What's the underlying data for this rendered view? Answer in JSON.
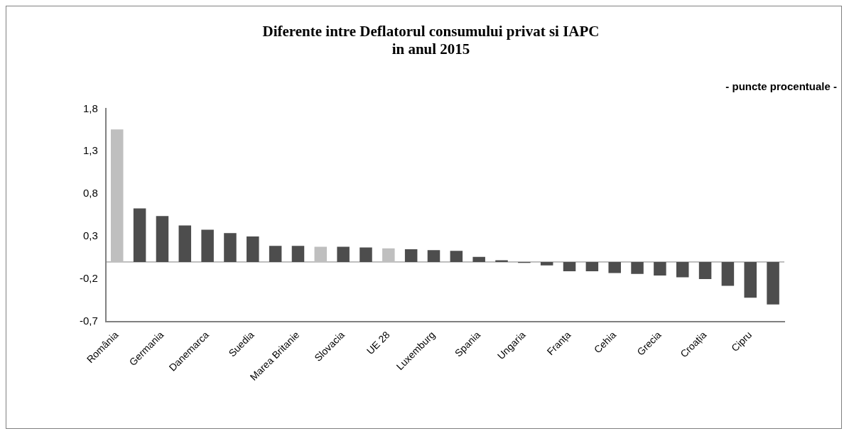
{
  "chart_data": {
    "type": "bar",
    "title": "Diferente intre Deflatorul consumului privat si IAPC\nin anul 2015",
    "annotations": [
      "- puncte procentuale -"
    ],
    "categories": [
      "România",
      null,
      "Germania",
      null,
      "Danemarca",
      null,
      "Suedia",
      null,
      "Marea Britanie",
      null,
      "Slovacia",
      null,
      "UE 28",
      null,
      "Luxemburg",
      null,
      "Spania",
      null,
      "Ungaria",
      null,
      "Franța",
      null,
      "Cehia",
      null,
      "Grecia",
      null,
      "Croația",
      null,
      "Cipru",
      null
    ],
    "values": [
      1.56,
      0.63,
      0.54,
      0.43,
      0.38,
      0.34,
      0.3,
      0.19,
      0.19,
      0.18,
      0.18,
      0.17,
      0.16,
      0.15,
      0.14,
      0.13,
      0.06,
      0.02,
      -0.01,
      -0.04,
      -0.11,
      -0.11,
      -0.13,
      -0.14,
      -0.16,
      -0.18,
      -0.2,
      -0.28,
      -0.42,
      -0.5
    ],
    "colors": [
      "#bfbfbf",
      "#4d4d4d",
      "#4d4d4d",
      "#4d4d4d",
      "#4d4d4d",
      "#4d4d4d",
      "#4d4d4d",
      "#4d4d4d",
      "#4d4d4d",
      "#bfbfbf",
      "#4d4d4d",
      "#4d4d4d",
      "#bfbfbf",
      "#4d4d4d",
      "#4d4d4d",
      "#4d4d4d",
      "#4d4d4d",
      "#4d4d4d",
      "#4d4d4d",
      "#4d4d4d",
      "#4d4d4d",
      "#4d4d4d",
      "#4d4d4d",
      "#4d4d4d",
      "#4d4d4d",
      "#4d4d4d",
      "#4d4d4d",
      "#4d4d4d",
      "#4d4d4d",
      "#4d4d4d"
    ],
    "ylim": [
      -0.7,
      1.8
    ],
    "yticks": [
      {
        "value": -0.7,
        "label": "-0,7"
      },
      {
        "value": -0.2,
        "label": "-0,2"
      },
      {
        "value": 0.3,
        "label": "0,3"
      },
      {
        "value": 0.8,
        "label": "0,8"
      },
      {
        "value": 1.3,
        "label": "1,3"
      },
      {
        "value": 1.8,
        "label": "1,8"
      }
    ],
    "ref_lines": [
      {
        "axis": "y",
        "value": 0,
        "color": "#808080"
      }
    ],
    "grid": false,
    "legend": false
  }
}
